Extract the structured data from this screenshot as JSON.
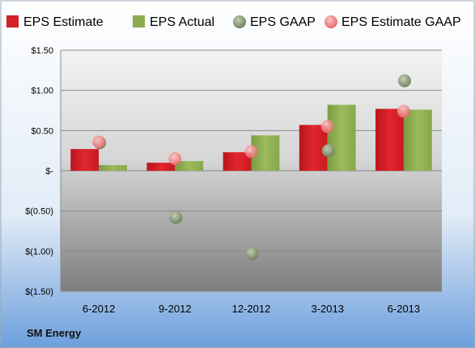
{
  "company": "SM Energy",
  "colors": {
    "estimate": "#d42027",
    "actual": "#8cad4f",
    "gaap": "#8a9a78",
    "estimate_gaap": "#f08080"
  },
  "chart_data": {
    "type": "bar",
    "categories": [
      "6-2012",
      "9-2012",
      "12-2012",
      "3-2013",
      "6-2013"
    ],
    "series": [
      {
        "name": "EPS Estimate",
        "kind": "bar",
        "values": [
          0.27,
          0.1,
          0.23,
          0.57,
          0.77
        ]
      },
      {
        "name": "EPS Actual",
        "kind": "bar",
        "values": [
          0.07,
          0.12,
          0.44,
          0.82,
          0.76
        ]
      },
      {
        "name": "EPS GAAP",
        "kind": "scatter",
        "values": [
          0.35,
          -0.58,
          -1.03,
          0.25,
          1.12
        ]
      },
      {
        "name": "EPS Estimate GAAP",
        "kind": "scatter",
        "values": [
          0.36,
          0.15,
          0.24,
          0.55,
          0.74
        ]
      }
    ],
    "ylim": [
      -1.5,
      1.5
    ],
    "yticks": [
      1.5,
      1.0,
      0.5,
      0,
      -0.5,
      -1.0,
      -1.5
    ],
    "ytick_labels": [
      "$1.50",
      "$1.00",
      "$0.50",
      "$-",
      "$(0.50)",
      "$(1.00)",
      "$(1.50)"
    ],
    "grid": true,
    "legend": "top"
  }
}
